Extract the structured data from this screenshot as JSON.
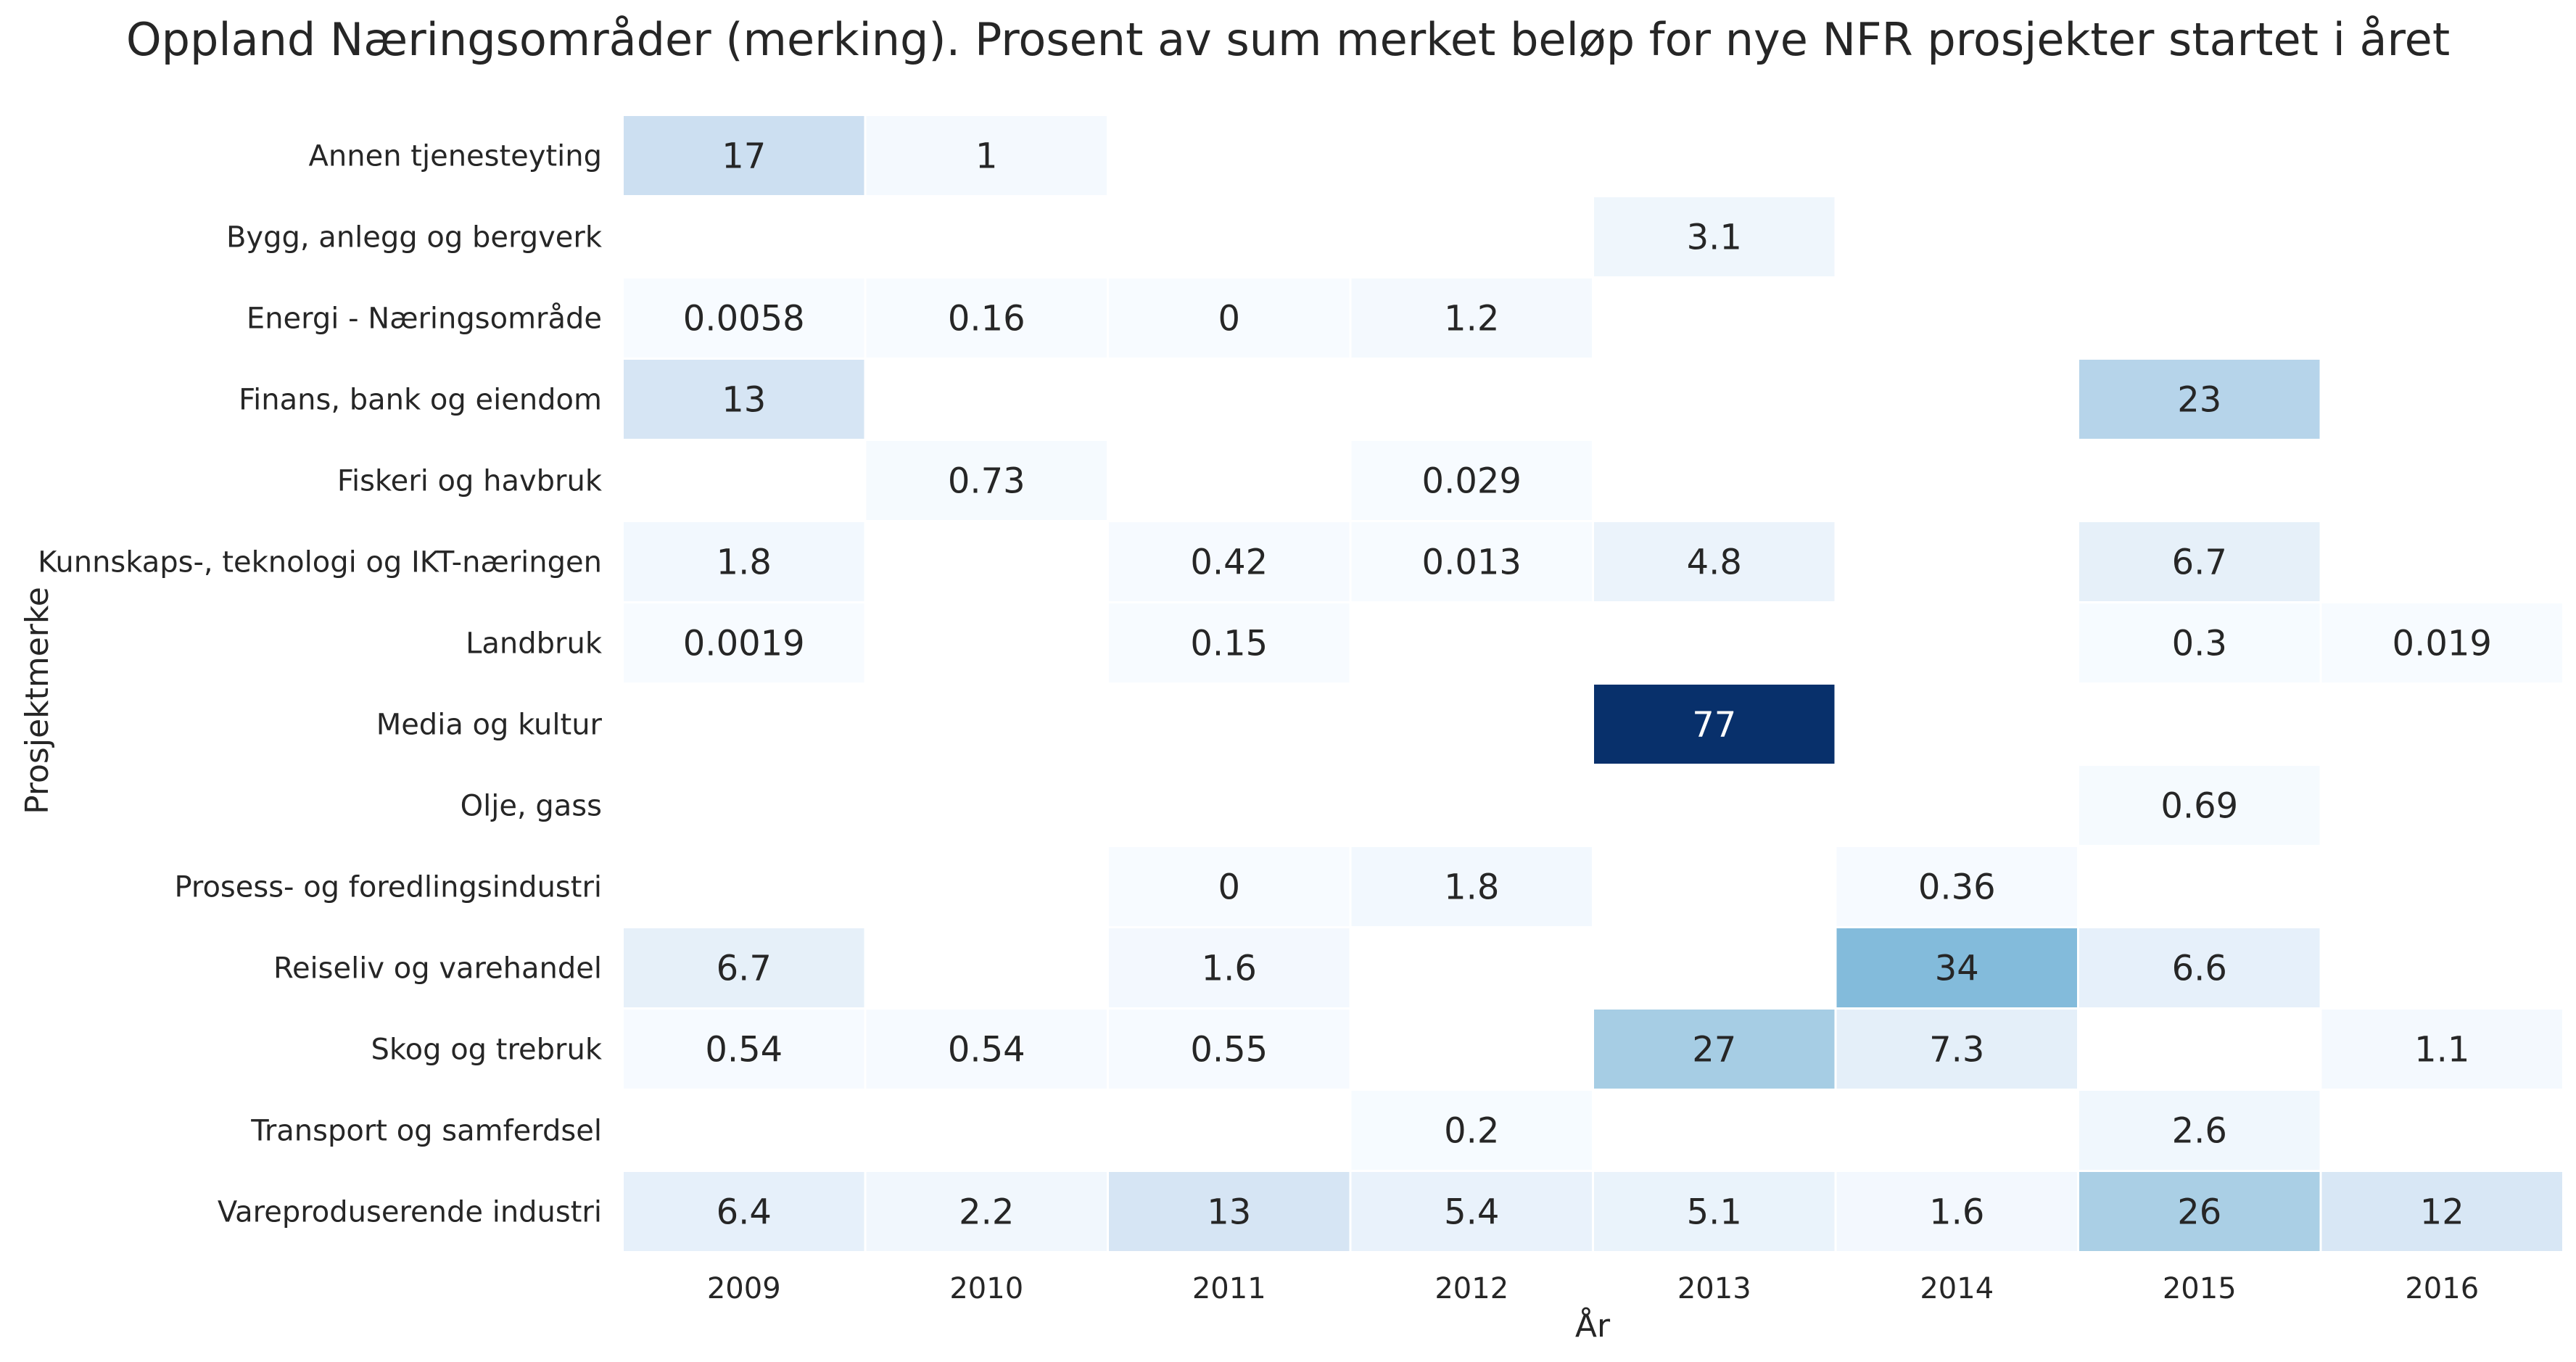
{
  "chart_data": {
    "type": "heatmap",
    "title": "Oppland Næringsområder (merking). Prosent av sum merket beløp for nye NFR prosjekter startet i året",
    "xlabel": "År",
    "ylabel": "Prosjektmerke",
    "colormap": "Blues",
    "vmin": 0,
    "vmax": 77,
    "x": [
      "2009",
      "2010",
      "2011",
      "2012",
      "2013",
      "2014",
      "2015",
      "2016"
    ],
    "y": [
      "Annen tjenesteyting",
      "Bygg, anlegg og bergverk",
      "Energi - Næringsområde",
      "Finans, bank og eiendom",
      "Fiskeri og havbruk",
      "Kunnskaps-, teknologi og IKT-næringen",
      "Landbruk",
      "Media og kultur",
      "Olje, gass",
      "Prosess- og foredlingsindustri",
      "Reiseliv og varehandel",
      "Skog og trebruk",
      "Transport og samferdsel",
      "Vareproduserende industri"
    ],
    "values": [
      [
        17,
        1,
        null,
        null,
        null,
        null,
        null,
        null
      ],
      [
        null,
        null,
        null,
        null,
        3.1,
        null,
        null,
        null
      ],
      [
        0.0058,
        0.16,
        0,
        1.2,
        null,
        null,
        null,
        null
      ],
      [
        13,
        null,
        null,
        null,
        null,
        null,
        23,
        null
      ],
      [
        null,
        0.73,
        null,
        0.029,
        null,
        null,
        null,
        null
      ],
      [
        1.8,
        null,
        0.42,
        0.013,
        4.8,
        null,
        6.7,
        null
      ],
      [
        0.0019,
        null,
        0.15,
        null,
        null,
        null,
        0.3,
        0.019
      ],
      [
        null,
        null,
        null,
        null,
        77,
        null,
        null,
        null
      ],
      [
        null,
        null,
        null,
        null,
        null,
        null,
        0.69,
        null
      ],
      [
        null,
        null,
        0,
        1.8,
        null,
        0.36,
        null,
        null
      ],
      [
        6.7,
        null,
        1.6,
        null,
        null,
        34,
        6.6,
        null
      ],
      [
        0.54,
        0.54,
        0.55,
        null,
        27,
        7.3,
        null,
        1.1
      ],
      [
        null,
        null,
        null,
        0.2,
        null,
        null,
        2.6,
        null
      ],
      [
        6.4,
        2.2,
        13,
        5.4,
        5.1,
        1.6,
        26,
        12
      ]
    ]
  }
}
